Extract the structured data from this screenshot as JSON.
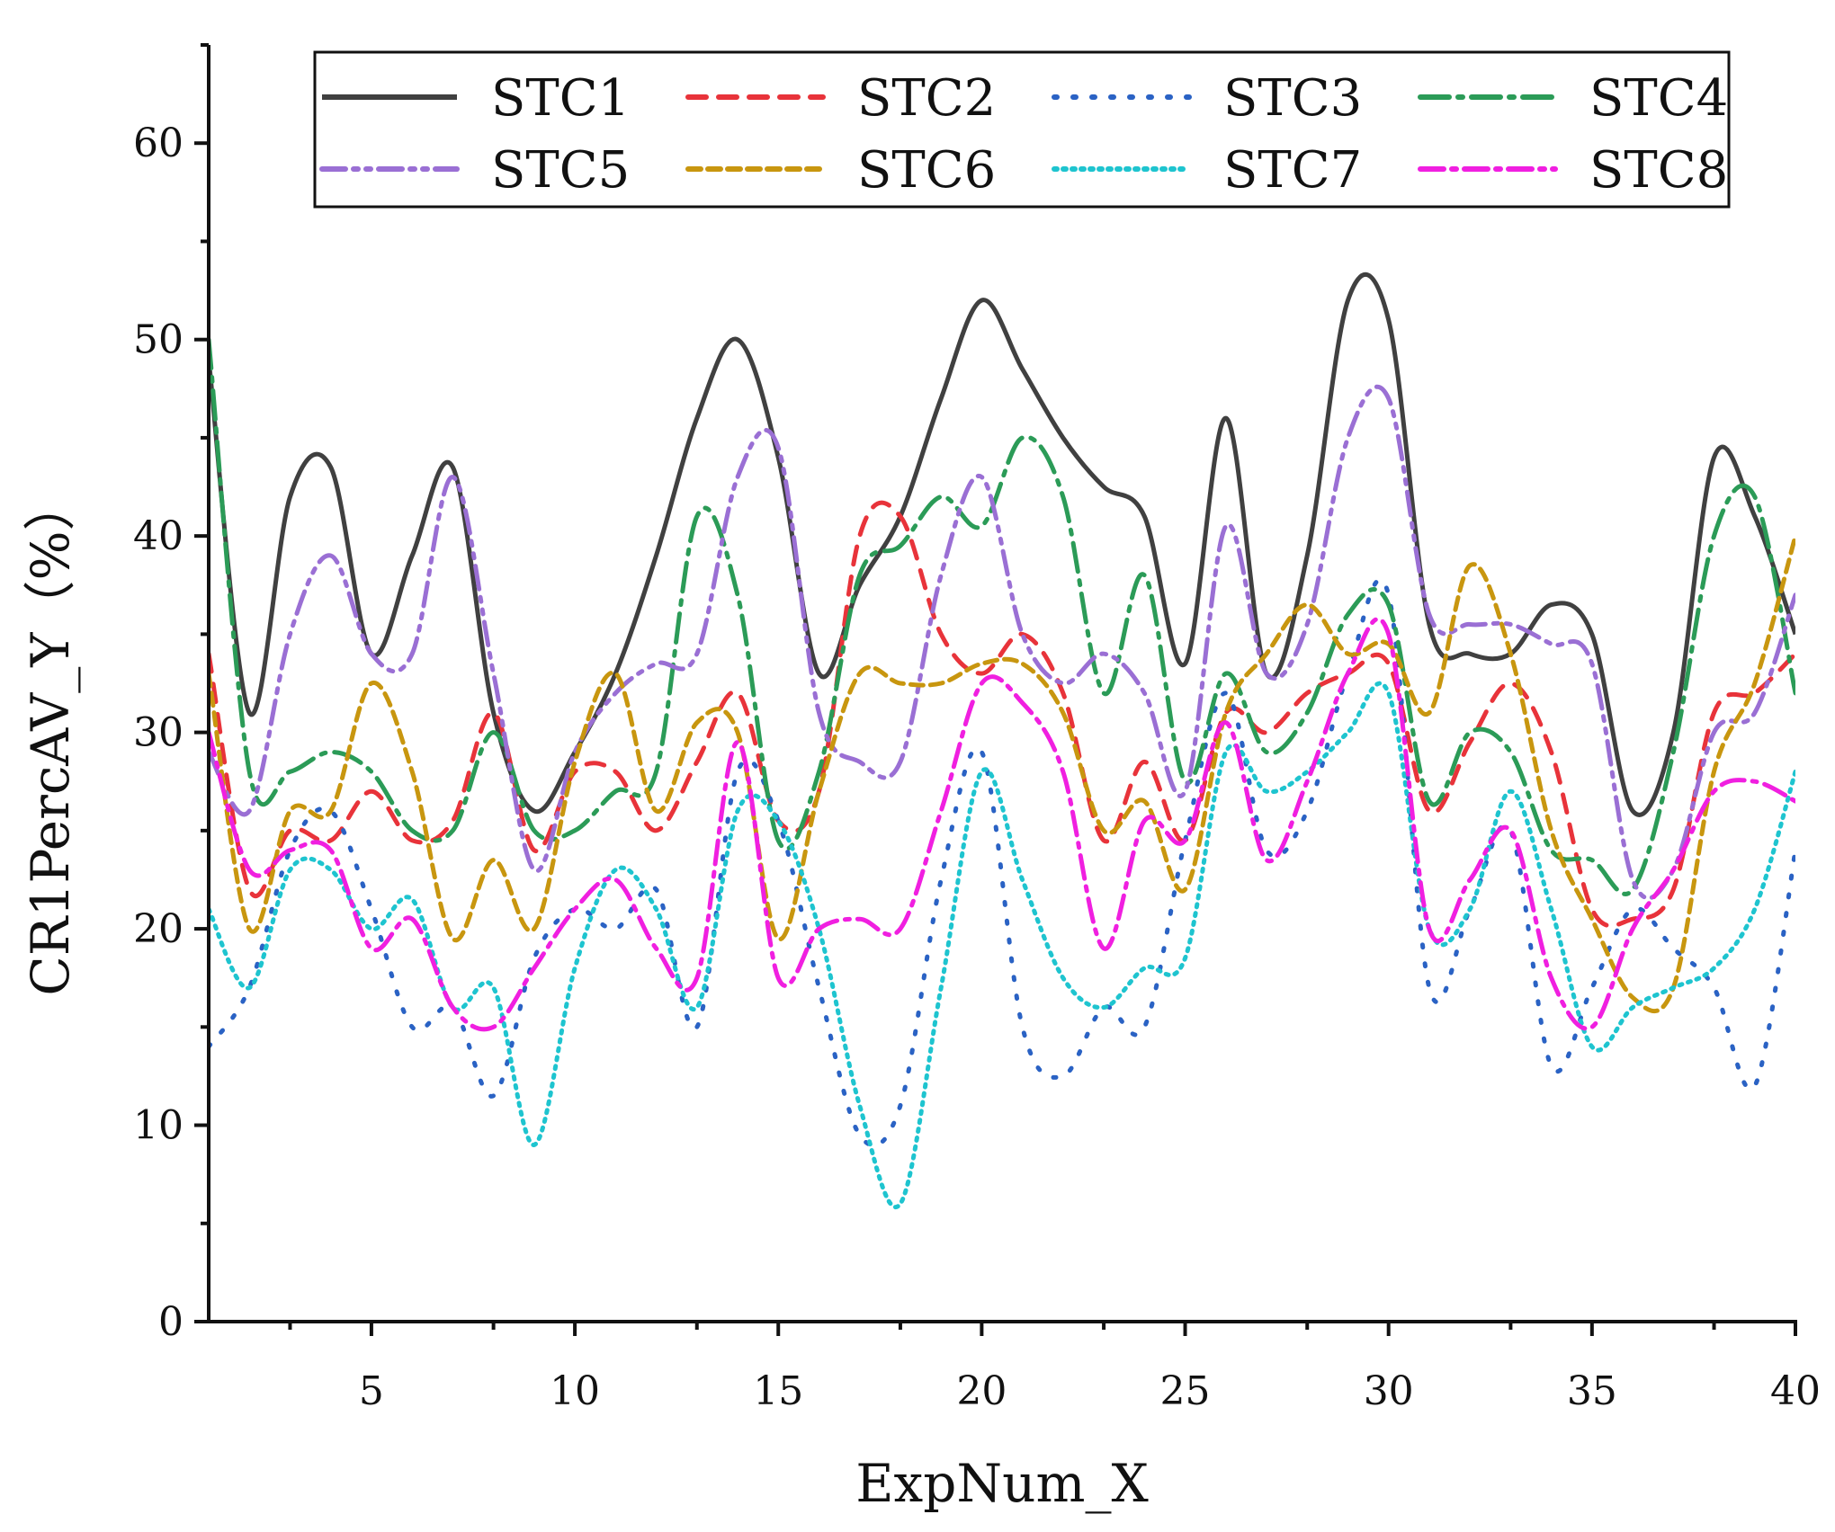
{
  "chart_data": {
    "type": "line",
    "xlabel": "ExpNum_X",
    "ylabel": "CR1PercAV_Y（%）",
    "xlim": [
      1,
      40
    ],
    "ylim": [
      0,
      65
    ],
    "xticks": [
      5,
      10,
      15,
      20,
      25,
      30,
      35,
      40
    ],
    "yticks": [
      0,
      10,
      20,
      30,
      40,
      50,
      60
    ],
    "legend_position": "top",
    "legend_columns": 4,
    "x": [
      1,
      2,
      3,
      4,
      5,
      6,
      7,
      8,
      9,
      10,
      11,
      12,
      13,
      14,
      15,
      16,
      17,
      18,
      19,
      20,
      21,
      22,
      23,
      24,
      25,
      26,
      27,
      28,
      29,
      30,
      31,
      32,
      33,
      34,
      35,
      36,
      37,
      38,
      39,
      40
    ],
    "series": [
      {
        "name": "STC1",
        "color": "#404040",
        "dash": "",
        "values": [
          49,
          31,
          42,
          43.5,
          34,
          39,
          43.5,
          31,
          26,
          29,
          33,
          39,
          46,
          50,
          44,
          33,
          37.5,
          41,
          47,
          52,
          48.5,
          45,
          42.5,
          41,
          33.5,
          46,
          33,
          39,
          52,
          51,
          35.5,
          34,
          34,
          36.5,
          35,
          26,
          30,
          44,
          41,
          35
        ]
      },
      {
        "name": "STC2",
        "color": "#e8333a",
        "dash": "20,14",
        "values": [
          34,
          22,
          25,
          24.5,
          27,
          24.5,
          25.5,
          31,
          24,
          28,
          28,
          25,
          28.5,
          32,
          25.5,
          27,
          40,
          41,
          35,
          33,
          35,
          32,
          24.5,
          28.5,
          24.5,
          31,
          30,
          32,
          33,
          33.5,
          26,
          29.5,
          32.5,
          29,
          21,
          20.5,
          22,
          31,
          32,
          34
        ]
      },
      {
        "name": "STC3",
        "color": "#2a62c4",
        "dash": "3,18",
        "values": [
          14,
          17,
          24,
          26,
          21,
          15,
          16,
          11.5,
          18.5,
          21,
          20,
          22,
          15,
          28,
          25.5,
          17,
          9.5,
          11,
          22.5,
          29,
          15,
          12.5,
          16,
          15,
          24.5,
          32,
          24,
          26,
          33,
          37,
          17,
          21,
          25,
          13,
          17,
          21,
          19,
          17,
          12,
          24
        ]
      },
      {
        "name": "STC4",
        "color": "#2b9b57",
        "dash": "32,10,5,10",
        "values": [
          50,
          28,
          28,
          29,
          28,
          25,
          25,
          30,
          25,
          25,
          27,
          28,
          41,
          37,
          24.5,
          28,
          38,
          39.5,
          42,
          40.5,
          45,
          42,
          32,
          38,
          27.5,
          33,
          29,
          31,
          36,
          36.5,
          26.5,
          30,
          29,
          24,
          23.5,
          22,
          29,
          40,
          42,
          32
        ]
      },
      {
        "name": "STC5",
        "color": "#9a6fd4",
        "dash": "26,9,5,9,5,9",
        "values": [
          29,
          26,
          35,
          39,
          34,
          34,
          43,
          33,
          23,
          29,
          32,
          33.5,
          34,
          43,
          44.5,
          31,
          28.5,
          28.5,
          38,
          43,
          35,
          32.5,
          34,
          32,
          27,
          40.5,
          33,
          35.5,
          45,
          47,
          36,
          35.5,
          35.5,
          34.5,
          33.5,
          22.5,
          23,
          30,
          31,
          37
        ]
      },
      {
        "name": "STC6",
        "color": "#c8960f",
        "dash": "14,8",
        "values": [
          33,
          20,
          26,
          26,
          32.5,
          28,
          19.5,
          23.5,
          20,
          28.5,
          33,
          26,
          30.5,
          30,
          19.5,
          27,
          33,
          32.5,
          32.5,
          33.5,
          33.5,
          31,
          25,
          26.5,
          22,
          31,
          34,
          36.5,
          34,
          34.5,
          31,
          38.5,
          34,
          25,
          20.5,
          16.5,
          17,
          28,
          32.5,
          40
        ]
      },
      {
        "name": "STC7",
        "color": "#1ec4cf",
        "dash": "3,7",
        "values": [
          21,
          17,
          23,
          23,
          20,
          21.5,
          16,
          17,
          9,
          18,
          23,
          21,
          16,
          26,
          25.5,
          20,
          11,
          6,
          17,
          28,
          22.5,
          17.5,
          16,
          18,
          18.5,
          29,
          27,
          28,
          30,
          32,
          20,
          21,
          27,
          21,
          14,
          16,
          17,
          18,
          21,
          28
        ]
      },
      {
        "name": "STC8",
        "color": "#f01fe0",
        "dash": "26,9,5,9",
        "values": [
          30,
          23,
          24,
          24,
          19,
          20.5,
          16,
          15,
          18,
          21,
          22.5,
          19,
          17.5,
          29.5,
          17.5,
          20,
          20.5,
          20,
          26,
          32.5,
          31.5,
          28,
          19,
          25.5,
          24.5,
          30.5,
          23.5,
          27.5,
          33,
          35,
          20,
          22.5,
          25,
          17.5,
          15,
          20,
          23,
          27,
          27.5,
          26.5
        ]
      }
    ]
  }
}
